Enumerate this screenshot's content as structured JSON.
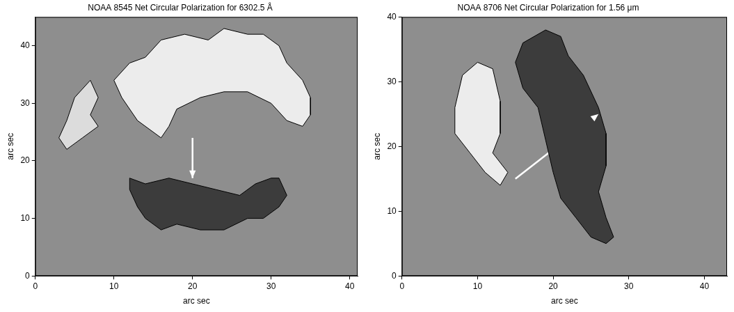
{
  "chart_data": [
    {
      "type": "scatter",
      "title": "NOAA 8545 Net Circular Polarization for 6302.5 Å",
      "x_label": "arc sec",
      "y_label": "arc sec",
      "xlim": [
        0,
        41
      ],
      "ylim": [
        0,
        45
      ],
      "xticks": [
        0,
        10,
        20,
        30,
        40
      ],
      "yticks": [
        0,
        10,
        20,
        30,
        40
      ],
      "grid": false,
      "series": [
        {
          "color": "#ececec",
          "x": [
            16,
            13,
            11,
            10,
            12,
            14,
            16,
            19,
            22,
            24,
            27,
            29,
            31,
            32,
            34,
            35,
            35,
            34,
            32,
            30,
            27,
            24,
            21,
            18,
            17,
            16
          ],
          "values": [
            24,
            27,
            31,
            34,
            37,
            38,
            41,
            42,
            41,
            43,
            42,
            42,
            40,
            37,
            34,
            31,
            28,
            26,
            27,
            30,
            32,
            32,
            31,
            29,
            26,
            24
          ]
        },
        {
          "color": "#dcdcdc",
          "x": [
            3,
            4,
            5,
            7,
            8,
            7,
            8,
            6,
            4,
            3
          ],
          "values": [
            24,
            27,
            31,
            34,
            31,
            28,
            26,
            24,
            22,
            24
          ]
        },
        {
          "color": "#3c3c3c",
          "x": [
            12,
            14,
            17,
            20,
            23,
            26,
            28,
            30,
            31,
            32,
            31,
            29,
            27,
            24,
            21,
            18,
            16,
            14,
            13,
            12,
            12
          ],
          "values": [
            17,
            16,
            17,
            16,
            15,
            14,
            16,
            17,
            17,
            14,
            12,
            10,
            10,
            8,
            8,
            9,
            8,
            10,
            12,
            15,
            17
          ]
        }
      ],
      "arrow": {
        "x": [
          20,
          20
        ],
        "values": [
          24,
          17
        ],
        "color": "#ffffff"
      }
    },
    {
      "type": "scatter",
      "title": "NOAA 8706 Net Circular Polarization for 1.56 μm",
      "x_label": "arc sec",
      "y_label": "arc sec",
      "xlim": [
        0,
        43
      ],
      "ylim": [
        0,
        40
      ],
      "xticks": [
        0,
        10,
        20,
        30,
        40
      ],
      "yticks": [
        0,
        10,
        20,
        30,
        40
      ],
      "grid": false,
      "series": [
        {
          "color": "#ececec",
          "x": [
            7,
            8,
            10,
            12,
            13,
            13,
            12,
            14,
            13,
            11,
            9,
            7,
            7
          ],
          "values": [
            26,
            31,
            33,
            32,
            27,
            22,
            19,
            16,
            14,
            16,
            19,
            22,
            26
          ]
        },
        {
          "color": "#3c3c3c",
          "x": [
            16,
            19,
            21,
            22,
            24,
            26,
            27,
            27,
            26,
            27,
            28,
            27,
            25,
            23,
            21,
            20,
            19,
            18,
            16,
            15,
            16
          ],
          "values": [
            36,
            38,
            37,
            34,
            31,
            26,
            22,
            17,
            13,
            9,
            6,
            5,
            6,
            9,
            12,
            16,
            21,
            26,
            29,
            33,
            36
          ]
        }
      ],
      "arrow": {
        "x": [
          15,
          26
        ],
        "values": [
          15,
          25
        ],
        "color": "#ffffff"
      }
    }
  ]
}
